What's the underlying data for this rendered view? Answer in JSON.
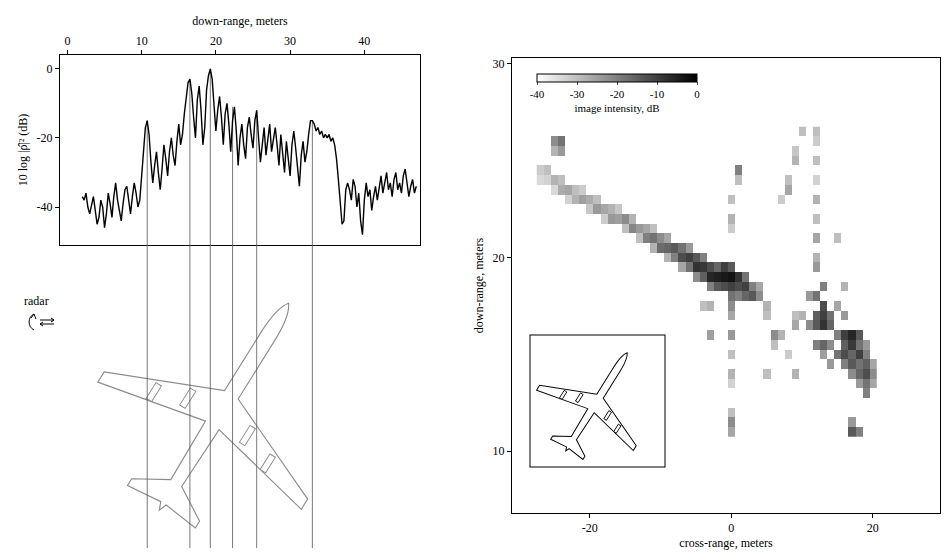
{
  "chart_data": [
    {
      "type": "line",
      "xaxis_title": "down-range, meters",
      "yaxis_title": "10 log |ρ̂|² (dB)",
      "color": "#000000",
      "x": [
        2,
        2.25,
        2.5,
        2.75,
        3,
        3.25,
        3.5,
        3.75,
        4,
        4.25,
        4.5,
        4.75,
        5,
        5.25,
        5.5,
        5.75,
        6,
        6.25,
        6.5,
        6.75,
        7,
        7.25,
        7.5,
        7.75,
        8,
        8.25,
        8.5,
        8.75,
        9,
        9.25,
        9.5,
        9.75,
        10,
        10.25,
        10.5,
        10.75,
        11,
        11.25,
        11.5,
        11.75,
        12,
        12.25,
        12.5,
        12.75,
        13,
        13.25,
        13.5,
        13.75,
        14,
        14.25,
        14.5,
        14.75,
        15,
        15.25,
        15.5,
        15.75,
        16,
        16.25,
        16.5,
        16.75,
        17,
        17.25,
        17.5,
        17.75,
        18,
        18.25,
        18.5,
        18.75,
        19,
        19.25,
        19.5,
        19.75,
        20,
        20.25,
        20.5,
        20.75,
        21,
        21.25,
        21.5,
        21.75,
        22,
        22.25,
        22.5,
        22.75,
        23,
        23.25,
        23.5,
        23.75,
        24,
        24.25,
        24.5,
        24.75,
        25,
        25.25,
        25.5,
        25.75,
        26,
        26.25,
        26.5,
        26.75,
        27,
        27.25,
        27.5,
        27.75,
        28,
        28.25,
        28.5,
        28.75,
        29,
        29.25,
        29.5,
        29.75,
        30,
        30.25,
        30.5,
        30.75,
        31,
        31.25,
        31.5,
        31.75,
        32,
        32.25,
        32.5,
        32.75,
        33,
        33.25,
        33.5,
        33.75,
        34,
        34.25,
        34.5,
        34.75,
        35,
        35.25,
        35.5,
        35.75,
        36,
        36.25,
        36.5,
        36.75,
        37,
        37.25,
        37.5,
        37.75,
        38,
        38.25,
        38.5,
        38.75,
        39,
        39.25,
        39.5,
        39.75,
        40,
        40.25,
        40.5,
        40.75,
        41,
        41.25,
        41.5,
        41.75,
        42,
        42.25,
        42.5,
        42.75,
        43,
        43.25,
        43.5,
        43.75,
        44,
        44.25,
        44.5,
        44.75,
        45,
        45.25,
        45.5,
        45.75,
        46,
        46.25,
        46.5,
        46.75,
        47
      ],
      "values": [
        -37,
        -38,
        -36,
        -40,
        -42,
        -39,
        -37,
        -41,
        -45,
        -43,
        -38,
        -40,
        -46,
        -42,
        -36,
        -39,
        -43,
        -37,
        -33,
        -38,
        -41,
        -44,
        -39,
        -35,
        -34,
        -38,
        -42,
        -37,
        -33,
        -36,
        -40,
        -38,
        -30,
        -22,
        -17,
        -15,
        -19,
        -27,
        -33,
        -28,
        -24,
        -30,
        -35,
        -29,
        -22,
        -26,
        -31,
        -24,
        -20,
        -25,
        -28,
        -21,
        -16,
        -22,
        -19,
        -13,
        -8,
        -4,
        -3,
        -7,
        -14,
        -20,
        -9,
        -5,
        -12,
        -22,
        -17,
        -6,
        -2,
        0,
        -3,
        -10,
        -18,
        -12,
        -8,
        -14,
        -22,
        -13,
        -10,
        -16,
        -24,
        -15,
        -11,
        -18,
        -28,
        -20,
        -16,
        -22,
        -26,
        -17,
        -14,
        -19,
        -23,
        -15,
        -12,
        -20,
        -27,
        -22,
        -17,
        -25,
        -20,
        -16,
        -24,
        -21,
        -17,
        -22,
        -28,
        -19,
        -24,
        -30,
        -21,
        -26,
        -31,
        -22,
        -18,
        -23,
        -28,
        -34,
        -25,
        -21,
        -27,
        -24,
        -19,
        -15,
        -15,
        -16,
        -18,
        -17,
        -19,
        -18,
        -20,
        -19,
        -20,
        -19,
        -21,
        -20,
        -22,
        -26,
        -32,
        -40,
        -45,
        -44,
        -35,
        -33,
        -35,
        -38,
        -32,
        -34,
        -40,
        -36,
        -44,
        -48,
        -38,
        -33,
        -37,
        -35,
        -41,
        -37,
        -34,
        -38,
        -34,
        -31,
        -36,
        -33,
        -30,
        -35,
        -33,
        -37,
        -32,
        -30,
        -35,
        -33,
        -36,
        -31,
        -29,
        -33,
        -37,
        -34,
        -32,
        -36,
        -34
      ],
      "xlim": [
        -1,
        47.5
      ],
      "xticks": [
        0,
        10,
        20,
        30,
        40
      ],
      "ylim": [
        -51,
        4
      ],
      "yticks": [
        0,
        -20,
        -40
      ],
      "reference_lines": {
        "x": [
          10.75,
          16.5,
          19.25,
          22.25,
          25.5,
          33
        ],
        "values": [
          -15,
          -3,
          0,
          -11,
          -12,
          -15
        ]
      },
      "annotations": [
        "radar"
      ]
    },
    {
      "type": "heatmap",
      "xaxis_title": "cross-range, meters",
      "yaxis_title": "down-range, meters",
      "xlim": [
        -31,
        29.5
      ],
      "xticks": [
        -20,
        0,
        20
      ],
      "ylim": [
        6.8,
        30.3
      ],
      "yticks": [
        10,
        20,
        30
      ],
      "cell_size": [
        1,
        0.5
      ],
      "colorbar": {
        "title": "image intensity, dB",
        "range": [
          -40,
          0
        ],
        "ticks": [
          -40,
          -30,
          -20,
          -10,
          0
        ]
      },
      "cells": [
        [
          -25,
          26,
          -22
        ],
        [
          -24,
          26,
          -18
        ],
        [
          -24,
          25.5,
          -24
        ],
        [
          -25,
          25.5,
          -28
        ],
        [
          -27,
          24.5,
          -32
        ],
        [
          -27,
          24,
          -34
        ],
        [
          -26,
          24.5,
          -30
        ],
        [
          -26,
          24,
          -33
        ],
        [
          -25,
          24,
          -28
        ],
        [
          -25,
          23.5,
          -34
        ],
        [
          -24,
          24,
          -30
        ],
        [
          -24,
          23.5,
          -27
        ],
        [
          -23,
          23.5,
          -26
        ],
        [
          -23,
          23,
          -33
        ],
        [
          -22,
          23.5,
          -30
        ],
        [
          -22,
          23,
          -28
        ],
        [
          -21,
          23.5,
          -32
        ],
        [
          -21,
          23,
          -25
        ],
        [
          -20,
          23,
          -27
        ],
        [
          -20,
          22.5,
          -31
        ],
        [
          -19,
          23,
          -30
        ],
        [
          -19,
          22.5,
          -24
        ],
        [
          -18,
          22.5,
          -26
        ],
        [
          -18,
          22,
          -32
        ],
        [
          -17,
          22.5,
          -28
        ],
        [
          -17,
          22,
          -24
        ],
        [
          -16,
          22.5,
          -31
        ],
        [
          -16,
          22,
          -25
        ],
        [
          -15,
          22,
          -22
        ],
        [
          -15,
          21.5,
          -30
        ],
        [
          -14,
          22,
          -28
        ],
        [
          -14,
          21.5,
          -21
        ],
        [
          -13,
          21.5,
          -24
        ],
        [
          -13,
          21,
          -30
        ],
        [
          -12,
          21.5,
          -26
        ],
        [
          -12,
          21,
          -20
        ],
        [
          -11,
          21.5,
          -30
        ],
        [
          -11,
          21,
          -18
        ],
        [
          -11,
          20.5,
          -28
        ],
        [
          -10,
          21,
          -22
        ],
        [
          -10,
          20.5,
          -17
        ],
        [
          -9,
          21,
          -26
        ],
        [
          -9,
          20.5,
          -16
        ],
        [
          -9,
          20,
          -28
        ],
        [
          -8,
          20.5,
          -14
        ],
        [
          -8,
          20,
          -20
        ],
        [
          -7,
          20.5,
          -18
        ],
        [
          -7,
          20,
          -12
        ],
        [
          -7,
          19.5,
          -26
        ],
        [
          -6,
          20.5,
          -24
        ],
        [
          -6,
          20,
          -10
        ],
        [
          -6,
          19.5,
          -18
        ],
        [
          -5,
          20,
          -14
        ],
        [
          -5,
          19.5,
          -8
        ],
        [
          -5,
          19,
          -22
        ],
        [
          -4,
          20,
          -20
        ],
        [
          -4,
          19.5,
          -9
        ],
        [
          -4,
          19,
          -15
        ],
        [
          -3,
          19.5,
          -12
        ],
        [
          -3,
          19,
          -6
        ],
        [
          -3,
          18.5,
          -20
        ],
        [
          -2,
          19.5,
          -16
        ],
        [
          -2,
          19,
          -5
        ],
        [
          -2,
          18.5,
          -14
        ],
        [
          -1,
          19.5,
          -10
        ],
        [
          -1,
          19,
          -4
        ],
        [
          -1,
          18.5,
          -12
        ],
        [
          0,
          19.5,
          -14
        ],
        [
          0,
          19,
          -3
        ],
        [
          0,
          18.5,
          -10
        ],
        [
          0,
          18,
          -18
        ],
        [
          1,
          19,
          -8
        ],
        [
          1,
          18.5,
          -12
        ],
        [
          1,
          18,
          -20
        ],
        [
          2,
          19,
          -18
        ],
        [
          2,
          18.5,
          -10
        ],
        [
          2,
          18,
          -16
        ],
        [
          3,
          18.5,
          -20
        ],
        [
          3,
          18,
          -14
        ],
        [
          4,
          18.5,
          -26
        ],
        [
          4,
          18,
          -22
        ],
        [
          5,
          17.5,
          -28
        ],
        [
          1,
          24.5,
          -20
        ],
        [
          1,
          24,
          -30
        ],
        [
          0,
          23,
          -30
        ],
        [
          0,
          22,
          -28
        ],
        [
          0,
          21.5,
          -32
        ],
        [
          0,
          17.5,
          -22
        ],
        [
          0,
          17,
          -26
        ],
        [
          0,
          16,
          -24
        ],
        [
          0,
          15,
          -30
        ],
        [
          0,
          14,
          -28
        ],
        [
          0,
          13.5,
          -33
        ],
        [
          0,
          12,
          -30
        ],
        [
          0,
          11.5,
          -22
        ],
        [
          0,
          11,
          -26
        ],
        [
          -3,
          16,
          -25
        ],
        [
          -3,
          17.5,
          -28
        ],
        [
          -4,
          17.5,
          -30
        ],
        [
          12,
          26.5,
          -30
        ],
        [
          12,
          26,
          -32
        ],
        [
          12,
          25,
          -30
        ],
        [
          12,
          24,
          -33
        ],
        [
          12,
          23,
          -28
        ],
        [
          12,
          22,
          -30
        ],
        [
          12,
          21,
          -26
        ],
        [
          12,
          20,
          -28
        ],
        [
          12,
          19.5,
          -24
        ],
        [
          13,
          18.5,
          -20
        ],
        [
          10,
          26.5,
          -30
        ],
        [
          9,
          25.5,
          -31
        ],
        [
          9,
          25,
          -28
        ],
        [
          8,
          24,
          -30
        ],
        [
          8,
          23.5,
          -26
        ],
        [
          7,
          23,
          -32
        ],
        [
          11,
          18,
          -24
        ],
        [
          12,
          18,
          -18
        ],
        [
          13,
          17.5,
          -12
        ],
        [
          12,
          17,
          -15
        ],
        [
          13,
          17,
          -10
        ],
        [
          14,
          17,
          -18
        ],
        [
          11,
          16.5,
          -22
        ],
        [
          12,
          16.5,
          -14
        ],
        [
          13,
          16.5,
          -8
        ],
        [
          14,
          16.5,
          -16
        ],
        [
          15,
          16,
          -20
        ],
        [
          16,
          16,
          -10
        ],
        [
          17,
          16,
          -6
        ],
        [
          18,
          16,
          -14
        ],
        [
          12,
          15.5,
          -20
        ],
        [
          13,
          15.5,
          -16
        ],
        [
          14,
          15.5,
          -22
        ],
        [
          16,
          15.5,
          -15
        ],
        [
          17,
          15.5,
          -9
        ],
        [
          18,
          15.5,
          -18
        ],
        [
          19,
          15.5,
          -24
        ],
        [
          13,
          15,
          -25
        ],
        [
          15,
          15,
          -18
        ],
        [
          16,
          15,
          -12
        ],
        [
          17,
          15,
          -16
        ],
        [
          18,
          15,
          -10
        ],
        [
          19,
          15,
          -20
        ],
        [
          14,
          14.5,
          -24
        ],
        [
          16,
          14.5,
          -20
        ],
        [
          17,
          14.5,
          -14
        ],
        [
          18,
          14.5,
          -18
        ],
        [
          19,
          14.5,
          -15
        ],
        [
          20,
          14.5,
          -26
        ],
        [
          17,
          14,
          -22
        ],
        [
          18,
          14,
          -16
        ],
        [
          19,
          14,
          -12
        ],
        [
          20,
          14,
          -22
        ],
        [
          18,
          13.5,
          -24
        ],
        [
          19,
          13.5,
          -18
        ],
        [
          20,
          13.5,
          -26
        ],
        [
          19,
          13,
          -20
        ],
        [
          17,
          11,
          -14
        ],
        [
          18,
          11,
          -20
        ],
        [
          17,
          11.5,
          -24
        ],
        [
          16,
          17,
          -24
        ],
        [
          15,
          17.5,
          -26
        ],
        [
          10,
          17,
          -28
        ],
        [
          9,
          17,
          -30
        ],
        [
          9,
          16.5,
          -26
        ],
        [
          7,
          16,
          -28
        ],
        [
          6,
          16,
          -22
        ],
        [
          6,
          15.5,
          -30
        ],
        [
          5,
          17,
          -30
        ],
        [
          8,
          15,
          -32
        ],
        [
          5,
          14,
          -30
        ],
        [
          9,
          14,
          -28
        ],
        [
          15,
          21,
          -30
        ],
        [
          16,
          18.5,
          -28
        ]
      ]
    }
  ]
}
